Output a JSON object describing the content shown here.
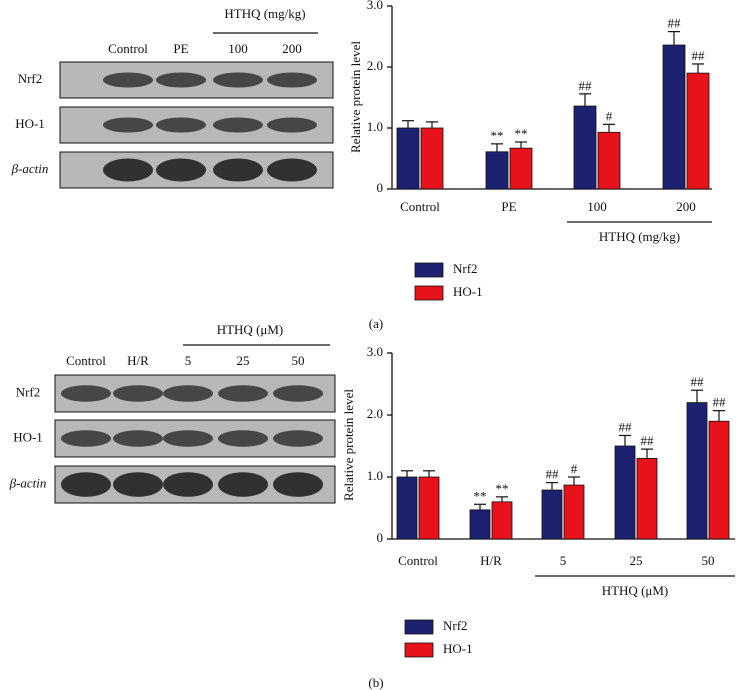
{
  "chart_data": [
    {
      "type": "bar",
      "panel_label": "(a)",
      "y_label": "Relative protein level",
      "categories": [
        "Control",
        "PE",
        "100",
        "200"
      ],
      "group_label": "HTHQ (mg/kg)",
      "ylim": [
        0,
        3
      ],
      "yticks": [
        0,
        {
          "value": 1,
          "label": "1.0"
        },
        {
          "value": 2,
          "label": "2.0"
        },
        {
          "value": 3,
          "label": "3.0"
        }
      ],
      "grid": false,
      "series": [
        {
          "name": "Nrf2",
          "color": "#1c2170",
          "values": [
            1.0,
            0.61,
            1.36,
            2.36
          ],
          "errors": [
            0.12,
            0.13,
            0.2,
            0.22
          ],
          "significance": [
            null,
            "**",
            "##",
            "##"
          ]
        },
        {
          "name": "HO-1",
          "color": "#e8121b",
          "values": [
            1.0,
            0.67,
            0.93,
            1.9
          ],
          "errors": [
            0.1,
            0.1,
            0.13,
            0.15
          ],
          "significance": [
            null,
            "**",
            "#",
            "##"
          ]
        }
      ]
    },
    {
      "type": "bar",
      "panel_label": "(b)",
      "y_label": "Relative protein level",
      "categories": [
        "Control",
        "H/R",
        "5",
        "25",
        "50"
      ],
      "group_label": "HTHQ (μM)",
      "ylim": [
        0,
        3
      ],
      "yticks": [
        0,
        {
          "value": 1,
          "label": "1.0"
        },
        {
          "value": 2,
          "label": "2.0"
        },
        {
          "value": 3,
          "label": "3.0"
        }
      ],
      "grid": false,
      "series": [
        {
          "name": "Nrf2",
          "color": "#1c2170",
          "values": [
            1.0,
            0.47,
            0.79,
            1.5,
            2.2
          ],
          "errors": [
            0.1,
            0.09,
            0.12,
            0.17,
            0.2
          ],
          "significance": [
            null,
            "**",
            "##",
            "##",
            "##"
          ]
        },
        {
          "name": "HO-1",
          "color": "#e8121b",
          "values": [
            1.0,
            0.6,
            0.87,
            1.3,
            1.9
          ],
          "errors": [
            0.1,
            0.08,
            0.13,
            0.15,
            0.17
          ],
          "significance": [
            null,
            "**",
            "#",
            "##",
            "##"
          ]
        }
      ]
    }
  ],
  "blots": [
    {
      "header": "HTHQ (mg/kg)",
      "lanes": [
        "Control",
        "PE",
        "100",
        "200"
      ],
      "rows": [
        "Nrf2",
        "HO-1",
        "β-actin"
      ]
    },
    {
      "header": "HTHQ (μM)",
      "lanes": [
        "Control",
        "H/R",
        "5",
        "25",
        "50"
      ],
      "rows": [
        "Nrf2",
        "HO-1",
        "β-actin"
      ]
    }
  ]
}
